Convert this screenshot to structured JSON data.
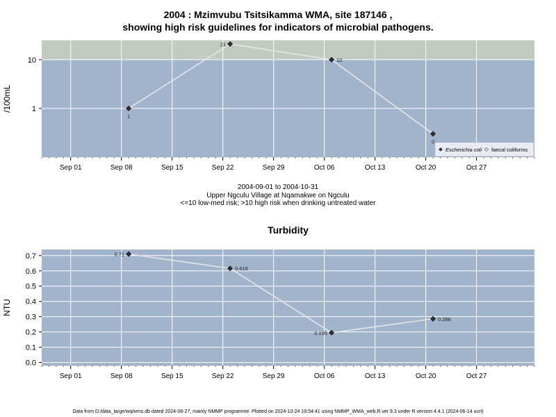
{
  "page": {
    "title_line1": "2004 : Mzimvubu Tsitsikamma WMA, site 187146 ,",
    "title_line2": "showing high risk guidelines for indicators of microbial pathogens.",
    "caption_line1": "2004-09-01 to 2004-10-31",
    "caption_line2": "Upper Ngculu Village at Nqamakwe on Ngculu",
    "caption_line3": "<=10 low-med risk; >10 high risk when drinking untreated water",
    "footer": "Data from D:/data_large/wq/wms.db dated 2024-08-27, mainly NMMP programme. Plotted on 2024-10-24 19:54:41 using NMMP_WMA_web.R ver 9.3 under R version 4.4.1 (2024-06-14 ucrt)"
  },
  "colors": {
    "panel_bg": "#a2b3cc",
    "high_risk_band": "#c1cbc0",
    "grid": "#ffffff",
    "series_line": "#e6e6e6",
    "point": "#333333"
  },
  "chart_data": [
    {
      "type": "line",
      "title": "",
      "ylabel": "/100mL",
      "yscale": "log",
      "ylim": [
        0.1,
        25
      ],
      "xlim": [
        "2004-08-28",
        "2004-11-04"
      ],
      "x_ticks": [
        "Sep 01",
        "Sep 08",
        "Sep 15",
        "Sep 22",
        "Sep 29",
        "Oct 06",
        "Oct 13",
        "Oct 20",
        "Oct 27"
      ],
      "x_tick_dates": [
        "2004-09-01",
        "2004-09-08",
        "2004-09-15",
        "2004-09-22",
        "2004-09-29",
        "2004-10-06",
        "2004-10-13",
        "2004-10-20",
        "2004-10-27"
      ],
      "y_ticks": [
        1,
        10
      ],
      "y_tick_labels": [
        "1",
        "10"
      ],
      "high_risk_threshold": 10,
      "grid": true,
      "legend_position": "bottom-right",
      "legend": [
        {
          "label": "Escherichia coli",
          "marker": "filled-diamond",
          "italic": true
        },
        {
          "label": "faecal coliforms",
          "marker": "open-diamond",
          "italic": false
        }
      ],
      "series": [
        {
          "name": "Escherichia coli",
          "x": [
            "2004-09-09",
            "2004-09-23",
            "2004-10-07",
            "2004-10-21"
          ],
          "y": [
            1,
            21,
            10,
            0.3
          ],
          "labels": [
            "1",
            "21",
            "10",
            "0"
          ]
        }
      ]
    },
    {
      "type": "line",
      "title": "Turbidity",
      "ylabel": "NTU",
      "yscale": "linear",
      "ylim": [
        -0.02,
        0.74
      ],
      "xlim": [
        "2004-08-28",
        "2004-11-04"
      ],
      "x_ticks": [
        "Sep 01",
        "Sep 08",
        "Sep 15",
        "Sep 22",
        "Sep 29",
        "Oct 06",
        "Oct 13",
        "Oct 20",
        "Oct 27"
      ],
      "x_tick_dates": [
        "2004-09-01",
        "2004-09-08",
        "2004-09-15",
        "2004-09-22",
        "2004-09-29",
        "2004-10-06",
        "2004-10-13",
        "2004-10-20",
        "2004-10-27"
      ],
      "y_ticks": [
        0,
        0.1,
        0.2,
        0.3,
        0.4,
        0.5,
        0.6,
        0.7
      ],
      "y_tick_labels": [
        "0.0",
        "0.1",
        "0.2",
        "0.3",
        "0.4",
        "0.5",
        "0.6",
        "0.7"
      ],
      "grid": true,
      "series": [
        {
          "name": "",
          "x": [
            "2004-09-09",
            "2004-09-23",
            "2004-10-07",
            "2004-10-21"
          ],
          "y": [
            0.71,
            0.616,
            0.195,
            0.286
          ],
          "labels": [
            "0.71",
            "0.616",
            "0.195",
            "0.286"
          ]
        }
      ]
    }
  ]
}
